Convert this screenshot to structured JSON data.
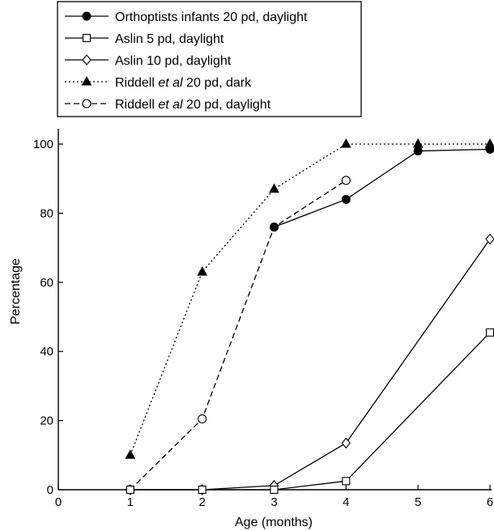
{
  "chart_data": {
    "type": "line",
    "xlabel": "Age (months)",
    "ylabel": "Percentage",
    "xlim": [
      0,
      6
    ],
    "ylim": [
      0,
      100
    ],
    "xticks": [
      0,
      1,
      2,
      3,
      4,
      5,
      6
    ],
    "yticks": [
      0,
      20,
      40,
      60,
      80,
      100
    ],
    "grid": false,
    "legend_position": "top-left",
    "series": [
      {
        "name_parts": [
          {
            "text": "Orthoptists infants 20 pd, daylight",
            "italic": false
          }
        ],
        "line": "solid",
        "marker": "filled-circle",
        "x": [
          3,
          4,
          5,
          6
        ],
        "y": [
          76,
          84,
          98,
          98.5
        ]
      },
      {
        "name_parts": [
          {
            "text": "Aslin 5 pd, daylight",
            "italic": false
          }
        ],
        "line": "solid",
        "marker": "open-square",
        "x": [
          1,
          2,
          3,
          4,
          6
        ],
        "y": [
          0,
          0,
          0,
          2.5,
          45.5
        ]
      },
      {
        "name_parts": [
          {
            "text": "Aslin 10 pd, daylight",
            "italic": false
          }
        ],
        "line": "solid",
        "marker": "open-diamond",
        "x": [
          1,
          2,
          3,
          4,
          6
        ],
        "y": [
          0,
          0,
          1.2,
          13.5,
          72.5
        ]
      },
      {
        "name_parts": [
          {
            "text": "Riddell ",
            "italic": false
          },
          {
            "text": "et al",
            "italic": true
          },
          {
            "text": " 20 pd, dark",
            "italic": false
          }
        ],
        "line": "dotted",
        "marker": "filled-triangle",
        "x": [
          1,
          2,
          3,
          4,
          5,
          6
        ],
        "y": [
          10,
          63,
          87,
          100,
          100,
          100
        ]
      },
      {
        "name_parts": [
          {
            "text": "Riddell ",
            "italic": false
          },
          {
            "text": "et al",
            "italic": true
          },
          {
            "text": " 20 pd, daylight",
            "italic": false
          }
        ],
        "line": "dashed",
        "marker": "open-circle",
        "x": [
          1,
          2,
          3,
          4
        ],
        "y": [
          0,
          20.5,
          76,
          89.5
        ]
      }
    ]
  }
}
